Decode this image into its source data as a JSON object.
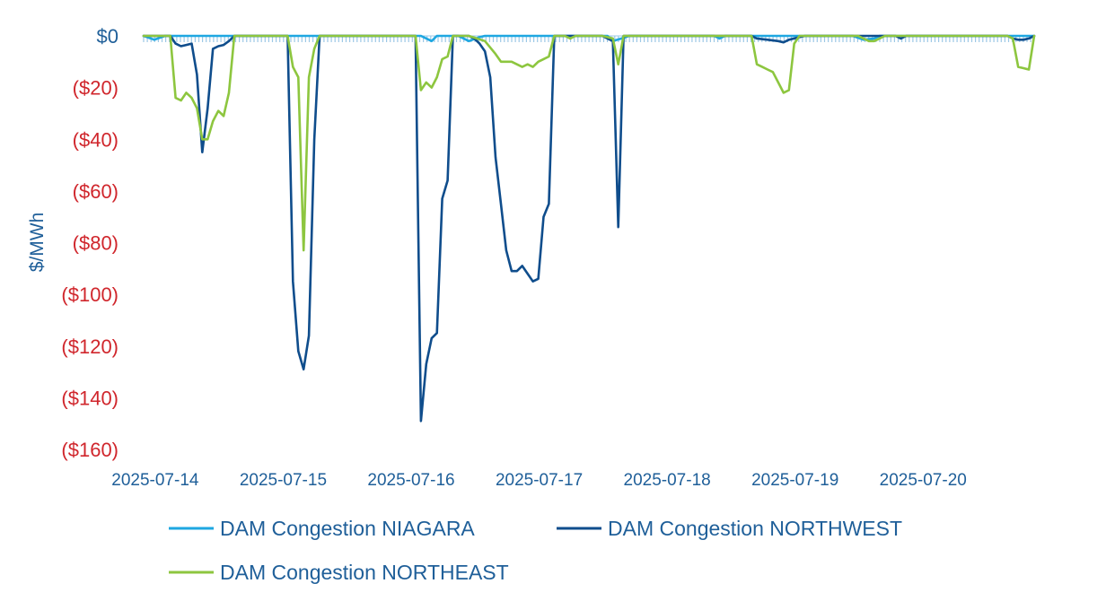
{
  "chart_data": {
    "type": "line",
    "title": "",
    "xlabel": "",
    "ylabel": "$/MWh",
    "ylim": [
      -160,
      0
    ],
    "yticks": [
      0,
      -20,
      -40,
      -60,
      -80,
      -100,
      -120,
      -140,
      -160
    ],
    "ytick_labels": [
      "$0",
      "($20)",
      "($40)",
      "($60)",
      "($80)",
      "($100)",
      "($120)",
      "($140)",
      "($160)"
    ],
    "xlim": [
      "2025-07-13 22:00",
      "2025-07-20 21:00"
    ],
    "xtick_values": [
      "2025-07-14 00:00",
      "2025-07-15 00:00",
      "2025-07-16 00:00",
      "2025-07-17 00:00",
      "2025-07-18 00:00",
      "2025-07-19 00:00",
      "2025-07-20 00:00"
    ],
    "xtick_labels": [
      "2025-07-14",
      "2025-07-15",
      "2025-07-16",
      "2025-07-17",
      "2025-07-18",
      "2025-07-19",
      "2025-07-20"
    ],
    "legend_position": "bottom",
    "series": [
      {
        "name": "DAM Congestion NIAGARA",
        "color": "#1ea7e1",
        "points": [
          [
            "2025-07-13 22:00",
            0
          ],
          [
            "2025-07-14 00:00",
            -1.5
          ],
          [
            "2025-07-14 02:00",
            0
          ],
          [
            "2025-07-16 02:00",
            0
          ],
          [
            "2025-07-16 04:00",
            -2
          ],
          [
            "2025-07-16 05:00",
            0
          ],
          [
            "2025-07-16 09:00",
            0
          ],
          [
            "2025-07-16 11:00",
            -2
          ],
          [
            "2025-07-16 13:00",
            -0.5
          ],
          [
            "2025-07-16 14:00",
            0
          ],
          [
            "2025-07-17 13:00",
            0
          ],
          [
            "2025-07-17 14:00",
            -2
          ],
          [
            "2025-07-17 16:00",
            -0.8
          ],
          [
            "2025-07-17 17:00",
            0
          ],
          [
            "2025-07-18 09:00",
            0
          ],
          [
            "2025-07-18 10:00",
            -1
          ],
          [
            "2025-07-18 11:00",
            0
          ],
          [
            "2025-07-19 11:00",
            0
          ],
          [
            "2025-07-19 13:00",
            -1.5
          ],
          [
            "2025-07-19 15:00",
            -1
          ],
          [
            "2025-07-19 16:00",
            0
          ],
          [
            "2025-07-20 21:00",
            0
          ]
        ]
      },
      {
        "name": "DAM Congestion NORTHWEST",
        "color": "#0f4d8c",
        "points": [
          [
            "2025-07-13 22:00",
            0
          ],
          [
            "2025-07-14 03:00",
            0
          ],
          [
            "2025-07-14 04:00",
            -3
          ],
          [
            "2025-07-14 05:00",
            -4
          ],
          [
            "2025-07-14 06:00",
            -3.5
          ],
          [
            "2025-07-14 07:00",
            -3
          ],
          [
            "2025-07-14 08:00",
            -15
          ],
          [
            "2025-07-14 09:00",
            -45
          ],
          [
            "2025-07-14 10:00",
            -28
          ],
          [
            "2025-07-14 11:00",
            -5
          ],
          [
            "2025-07-14 12:00",
            -4
          ],
          [
            "2025-07-14 13:00",
            -3.5
          ],
          [
            "2025-07-14 14:00",
            -2
          ],
          [
            "2025-07-14 15:00",
            0
          ],
          [
            "2025-07-15 01:00",
            0
          ],
          [
            "2025-07-15 02:00",
            -95
          ],
          [
            "2025-07-15 03:00",
            -122
          ],
          [
            "2025-07-15 04:00",
            -129
          ],
          [
            "2025-07-15 05:00",
            -116
          ],
          [
            "2025-07-15 06:00",
            -40
          ],
          [
            "2025-07-15 07:00",
            0
          ],
          [
            "2025-07-16 01:00",
            0
          ],
          [
            "2025-07-16 02:00",
            -149
          ],
          [
            "2025-07-16 03:00",
            -127
          ],
          [
            "2025-07-16 04:00",
            -117
          ],
          [
            "2025-07-16 05:00",
            -115
          ],
          [
            "2025-07-16 06:00",
            -63
          ],
          [
            "2025-07-16 07:00",
            -56
          ],
          [
            "2025-07-16 08:00",
            0
          ],
          [
            "2025-07-16 11:00",
            0
          ],
          [
            "2025-07-16 12:00",
            -1
          ],
          [
            "2025-07-16 13:00",
            -3
          ],
          [
            "2025-07-16 14:00",
            -6
          ],
          [
            "2025-07-16 15:00",
            -16
          ],
          [
            "2025-07-16 16:00",
            -47
          ],
          [
            "2025-07-16 17:00",
            -65
          ],
          [
            "2025-07-16 18:00",
            -83
          ],
          [
            "2025-07-16 19:00",
            -91
          ],
          [
            "2025-07-16 20:00",
            -91
          ],
          [
            "2025-07-16 21:00",
            -89
          ],
          [
            "2025-07-16 22:00",
            -92
          ],
          [
            "2025-07-16 23:00",
            -95
          ],
          [
            "2025-07-17 00:00",
            -94
          ],
          [
            "2025-07-17 01:00",
            -70
          ],
          [
            "2025-07-17 02:00",
            -65
          ],
          [
            "2025-07-17 03:00",
            0
          ],
          [
            "2025-07-17 12:00",
            0
          ],
          [
            "2025-07-17 13:00",
            -1
          ],
          [
            "2025-07-17 14:00",
            -2
          ],
          [
            "2025-07-17 15:00",
            -74
          ],
          [
            "2025-07-17 16:00",
            0
          ],
          [
            "2025-07-18 16:00",
            0
          ],
          [
            "2025-07-18 17:00",
            -1
          ],
          [
            "2025-07-18 19:00",
            -1.5
          ],
          [
            "2025-07-18 21:00",
            -2
          ],
          [
            "2025-07-18 22:00",
            -2.5
          ],
          [
            "2025-07-18 23:00",
            -1.5
          ],
          [
            "2025-07-19 00:00",
            -1
          ],
          [
            "2025-07-19 01:00",
            -0.5
          ],
          [
            "2025-07-19 02:00",
            0
          ],
          [
            "2025-07-19 19:00",
            0
          ],
          [
            "2025-07-19 20:00",
            -1
          ],
          [
            "2025-07-19 21:00",
            0
          ],
          [
            "2025-07-20 16:00",
            0
          ],
          [
            "2025-07-20 17:00",
            -1
          ],
          [
            "2025-07-20 18:00",
            -1.5
          ],
          [
            "2025-07-20 19:00",
            -1.5
          ],
          [
            "2025-07-20 20:00",
            -1
          ],
          [
            "2025-07-20 21:00",
            0
          ]
        ]
      },
      {
        "name": "DAM Congestion NORTHEAST",
        "color": "#8dc63f",
        "points": [
          [
            "2025-07-13 22:00",
            0
          ],
          [
            "2025-07-14 03:00",
            0
          ],
          [
            "2025-07-14 04:00",
            -24
          ],
          [
            "2025-07-14 05:00",
            -25
          ],
          [
            "2025-07-14 06:00",
            -22
          ],
          [
            "2025-07-14 07:00",
            -24
          ],
          [
            "2025-07-14 08:00",
            -28
          ],
          [
            "2025-07-14 09:00",
            -40
          ],
          [
            "2025-07-14 10:00",
            -40
          ],
          [
            "2025-07-14 11:00",
            -33
          ],
          [
            "2025-07-14 12:00",
            -29
          ],
          [
            "2025-07-14 13:00",
            -31
          ],
          [
            "2025-07-14 14:00",
            -22
          ],
          [
            "2025-07-14 15:00",
            0
          ],
          [
            "2025-07-15 01:00",
            0
          ],
          [
            "2025-07-15 02:00",
            -12
          ],
          [
            "2025-07-15 03:00",
            -16
          ],
          [
            "2025-07-15 04:00",
            -83
          ],
          [
            "2025-07-15 05:00",
            -16
          ],
          [
            "2025-07-15 06:00",
            -5
          ],
          [
            "2025-07-15 07:00",
            0
          ],
          [
            "2025-07-16 01:00",
            0
          ],
          [
            "2025-07-16 02:00",
            -21
          ],
          [
            "2025-07-16 03:00",
            -18
          ],
          [
            "2025-07-16 04:00",
            -20
          ],
          [
            "2025-07-16 05:00",
            -16
          ],
          [
            "2025-07-16 06:00",
            -9
          ],
          [
            "2025-07-16 07:00",
            -8
          ],
          [
            "2025-07-16 08:00",
            0
          ],
          [
            "2025-07-16 11:00",
            0
          ],
          [
            "2025-07-16 14:00",
            -2
          ],
          [
            "2025-07-16 16:00",
            -7
          ],
          [
            "2025-07-16 17:00",
            -10
          ],
          [
            "2025-07-16 19:00",
            -10
          ],
          [
            "2025-07-16 21:00",
            -12
          ],
          [
            "2025-07-16 22:00",
            -11
          ],
          [
            "2025-07-16 23:00",
            -12
          ],
          [
            "2025-07-17 00:00",
            -10
          ],
          [
            "2025-07-17 01:00",
            -9
          ],
          [
            "2025-07-17 02:00",
            -8
          ],
          [
            "2025-07-17 03:00",
            0
          ],
          [
            "2025-07-17 05:00",
            0
          ],
          [
            "2025-07-17 06:00",
            -1
          ],
          [
            "2025-07-17 07:00",
            0
          ],
          [
            "2025-07-17 12:00",
            0
          ],
          [
            "2025-07-17 14:00",
            -1
          ],
          [
            "2025-07-17 15:00",
            -11
          ],
          [
            "2025-07-17 16:00",
            0
          ],
          [
            "2025-07-18 16:00",
            0
          ],
          [
            "2025-07-18 17:00",
            -11
          ],
          [
            "2025-07-18 18:00",
            -12
          ],
          [
            "2025-07-18 19:00",
            -13
          ],
          [
            "2025-07-18 20:00",
            -14
          ],
          [
            "2025-07-18 21:00",
            -18
          ],
          [
            "2025-07-18 22:00",
            -22
          ],
          [
            "2025-07-18 23:00",
            -21
          ],
          [
            "2025-07-19 00:00",
            -3
          ],
          [
            "2025-07-19 01:00",
            0
          ],
          [
            "2025-07-19 12:00",
            0
          ],
          [
            "2025-07-19 13:00",
            -1
          ],
          [
            "2025-07-19 14:00",
            -2
          ],
          [
            "2025-07-19 15:00",
            -2
          ],
          [
            "2025-07-19 16:00",
            -1
          ],
          [
            "2025-07-19 17:00",
            0
          ],
          [
            "2025-07-20 16:00",
            0
          ],
          [
            "2025-07-20 17:00",
            -1
          ],
          [
            "2025-07-20 18:00",
            -12
          ],
          [
            "2025-07-20 19:00",
            -12.5
          ],
          [
            "2025-07-20 20:00",
            -13
          ],
          [
            "2025-07-20 21:00",
            0
          ]
        ]
      }
    ]
  },
  "colors": {
    "positive_tick": "#1f5f99",
    "negative_tick": "#d0262c",
    "baseline_hatch": "#9dc8e6"
  }
}
